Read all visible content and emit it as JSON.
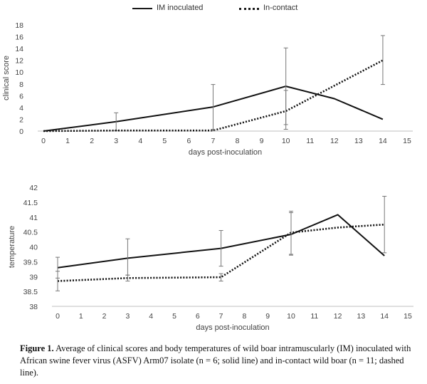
{
  "legend": {
    "series1": "IM inoculated",
    "series2": "In-contact"
  },
  "chart_data": [
    {
      "type": "line",
      "title": "",
      "xlabel": "days post-inoculation",
      "ylabel": "clinical score",
      "xlim": [
        0,
        15
      ],
      "ylim": [
        0,
        18
      ],
      "xticks": [
        0,
        1,
        2,
        3,
        4,
        5,
        6,
        7,
        8,
        9,
        10,
        11,
        12,
        13,
        14,
        15
      ],
      "yticks": [
        0,
        2,
        4,
        6,
        8,
        10,
        12,
        14,
        16,
        18
      ],
      "grid": false,
      "legend_position": "top",
      "series": [
        {
          "name": "IM inoculated",
          "style": "solid",
          "x": [
            0,
            3,
            7,
            10,
            12,
            14
          ],
          "y": [
            0,
            1.6,
            4.1,
            7.6,
            5.5,
            2.0
          ],
          "err_low": [
            null,
            0.1,
            0.1,
            1.1,
            null,
            null
          ],
          "err_high": [
            null,
            3.1,
            7.9,
            14.1,
            null,
            null
          ]
        },
        {
          "name": "In-contact",
          "style": "dotted",
          "x": [
            0,
            3,
            7,
            10,
            14
          ],
          "y": [
            0,
            0.1,
            0.1,
            3.4,
            12.0
          ],
          "err_low": [
            null,
            null,
            0.1,
            0.3,
            7.9
          ],
          "err_high": [
            null,
            null,
            0.3,
            6.9,
            16.2
          ]
        }
      ]
    },
    {
      "type": "line",
      "title": "",
      "xlabel": "days post-inoculation",
      "ylabel": "temperature",
      "xlim": [
        0,
        15
      ],
      "ylim": [
        38,
        42
      ],
      "xticks": [
        0,
        1,
        2,
        3,
        4,
        5,
        6,
        7,
        8,
        9,
        10,
        11,
        12,
        13,
        14,
        15
      ],
      "yticks": [
        38,
        38.5,
        39,
        39.5,
        40,
        40.5,
        41,
        41.5,
        42
      ],
      "grid": false,
      "series": [
        {
          "name": "IM inoculated",
          "style": "solid",
          "x": [
            0,
            3,
            7,
            10,
            12,
            14
          ],
          "y": [
            39.3,
            39.62,
            39.95,
            40.42,
            41.08,
            39.7
          ],
          "err_low": [
            38.95,
            39.05,
            39.35,
            39.75,
            null,
            null
          ],
          "err_high": [
            39.65,
            40.27,
            40.55,
            41.15,
            null,
            null
          ]
        },
        {
          "name": "In-contact",
          "style": "dotted",
          "x": [
            0,
            3,
            7,
            10,
            12,
            14
          ],
          "y": [
            38.85,
            38.95,
            38.98,
            40.48,
            40.65,
            40.75
          ],
          "err_low": [
            38.52,
            38.85,
            38.85,
            39.72,
            null,
            39.8
          ],
          "err_high": [
            39.18,
            39.05,
            39.1,
            41.2,
            null,
            41.7
          ]
        }
      ]
    }
  ],
  "caption": {
    "label": "Figure 1.",
    "text": "Average of clinical scores and body temperatures of wild boar intramuscularly (IM) inoculated with African swine fever virus (ASFV) Arm07 isolate (n = 6; solid line) and in-contact wild boar (n = 11; dashed line)."
  }
}
